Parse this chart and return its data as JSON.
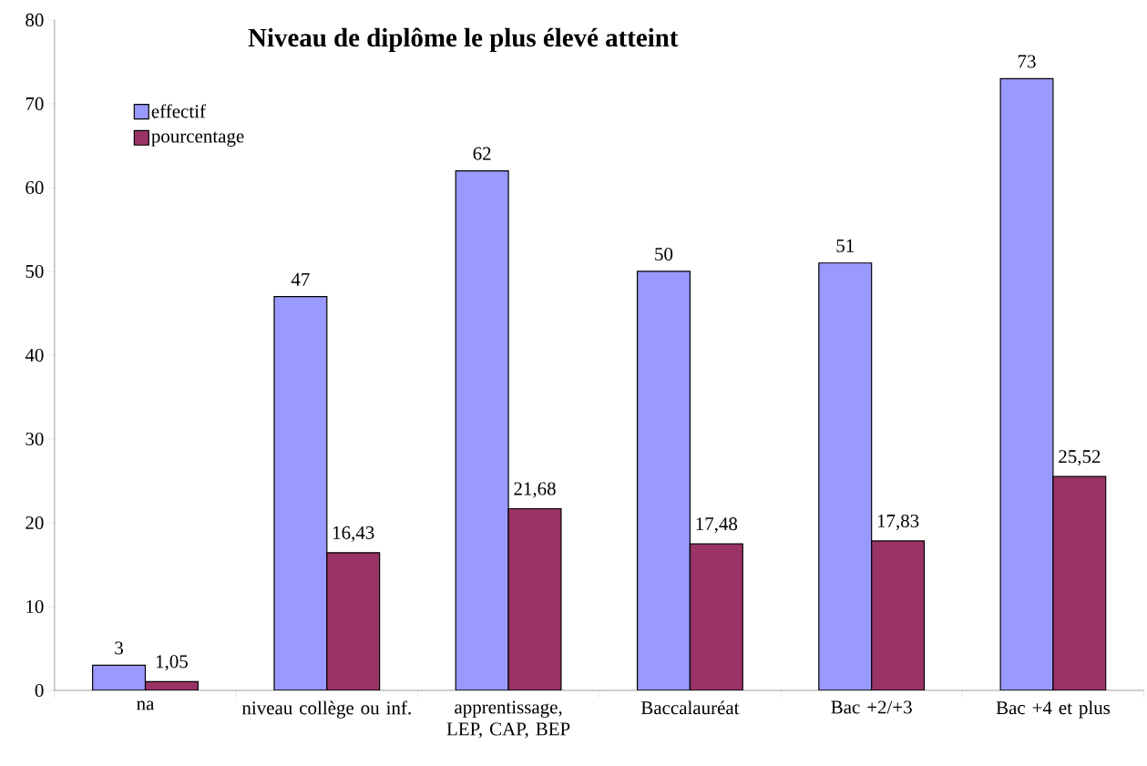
{
  "chart_data": {
    "type": "bar",
    "title": "Niveau de diplôme le plus élevé atteint",
    "categories": [
      "na",
      "niveau collège ou inf.",
      "apprentissage, LEP, CAP, BEP",
      "Baccalauréat",
      "Bac +2/+3",
      "Bac +4 et plus"
    ],
    "series": [
      {
        "name": "effectif",
        "color": "#9999ff",
        "values": [
          3,
          47,
          62,
          50,
          51,
          73
        ],
        "value_labels": [
          "3",
          "47",
          "62",
          "50",
          "51",
          "73"
        ]
      },
      {
        "name": "pourcentage",
        "color": "#993366",
        "values": [
          1.05,
          16.43,
          21.68,
          17.48,
          17.83,
          25.52
        ],
        "value_labels": [
          "1,05",
          "16,43",
          "21,68",
          "17,48",
          "17,83",
          "25,52"
        ]
      }
    ],
    "ylim": [
      0,
      80
    ],
    "yticks": [
      0,
      10,
      20,
      30,
      40,
      50,
      60,
      70,
      80
    ],
    "grid": false,
    "legend": "top left"
  }
}
